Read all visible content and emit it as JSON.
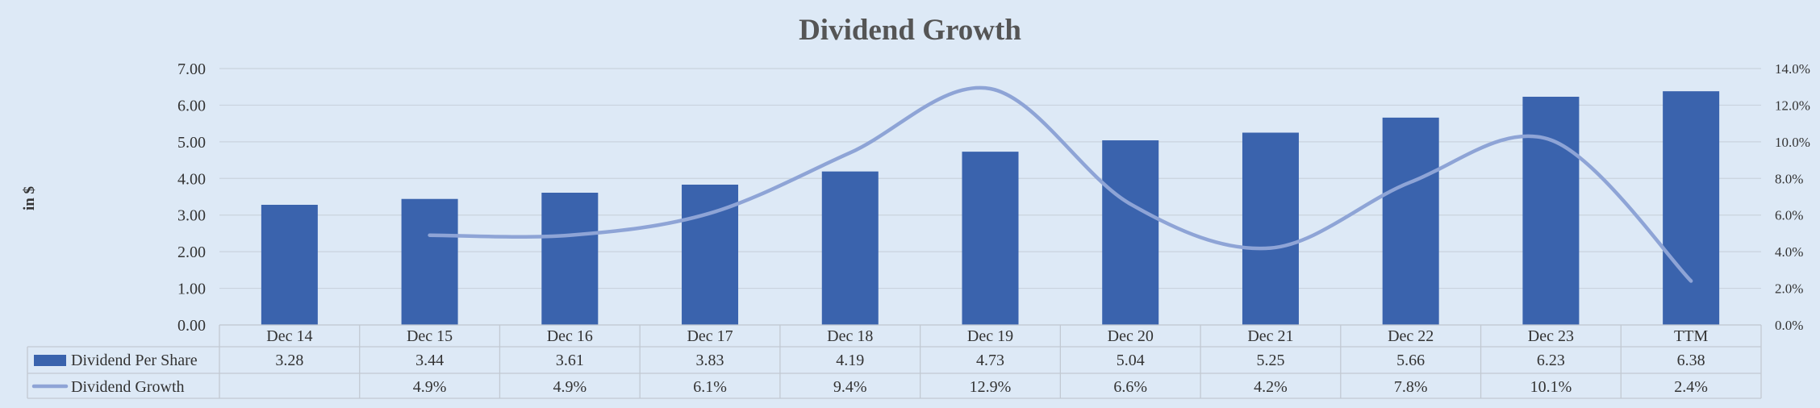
{
  "chart_data": {
    "type": "bar",
    "title": "Dividend Growth",
    "ylabel": "in $",
    "categories": [
      "Dec 14",
      "Dec 15",
      "Dec 16",
      "Dec 17",
      "Dec 18",
      "Dec 19",
      "Dec 20",
      "Dec 21",
      "Dec 22",
      "Dec 23",
      "TTM"
    ],
    "ylim": [
      0,
      7
    ],
    "y2lim": [
      0,
      14
    ],
    "y_ticks": [
      "0.00",
      "1.00",
      "2.00",
      "3.00",
      "4.00",
      "5.00",
      "6.00",
      "7.00"
    ],
    "y2_ticks": [
      "0.0%",
      "2.0%",
      "4.0%",
      "6.0%",
      "8.0%",
      "10.0%",
      "12.0%",
      "14.0%"
    ],
    "grid": true,
    "legend": "data-table",
    "series": [
      {
        "name": "Dividend Per Share",
        "type": "bar",
        "axis": "left",
        "values": [
          3.28,
          3.44,
          3.61,
          3.83,
          4.19,
          4.73,
          5.04,
          5.25,
          5.66,
          6.23,
          6.38
        ],
        "labels": [
          "3.28",
          "3.44",
          "3.61",
          "3.83",
          "4.19",
          "4.73",
          "5.04",
          "5.25",
          "5.66",
          "6.23",
          "6.38"
        ]
      },
      {
        "name": "Dividend Growth",
        "type": "line",
        "axis": "right",
        "values": [
          null,
          4.9,
          4.9,
          6.1,
          9.4,
          12.9,
          6.6,
          4.2,
          7.8,
          10.1,
          2.4
        ],
        "labels": [
          "",
          "4.9%",
          "4.9%",
          "6.1%",
          "9.4%",
          "12.9%",
          "6.6%",
          "4.2%",
          "7.8%",
          "10.1%",
          "2.4%"
        ]
      }
    ],
    "colors": {
      "bar": "#3a63ad",
      "line": "#8ea4d6",
      "grid": "#c9d3de",
      "table_border": "#c2c9d2",
      "background": "#dde9f6"
    }
  }
}
